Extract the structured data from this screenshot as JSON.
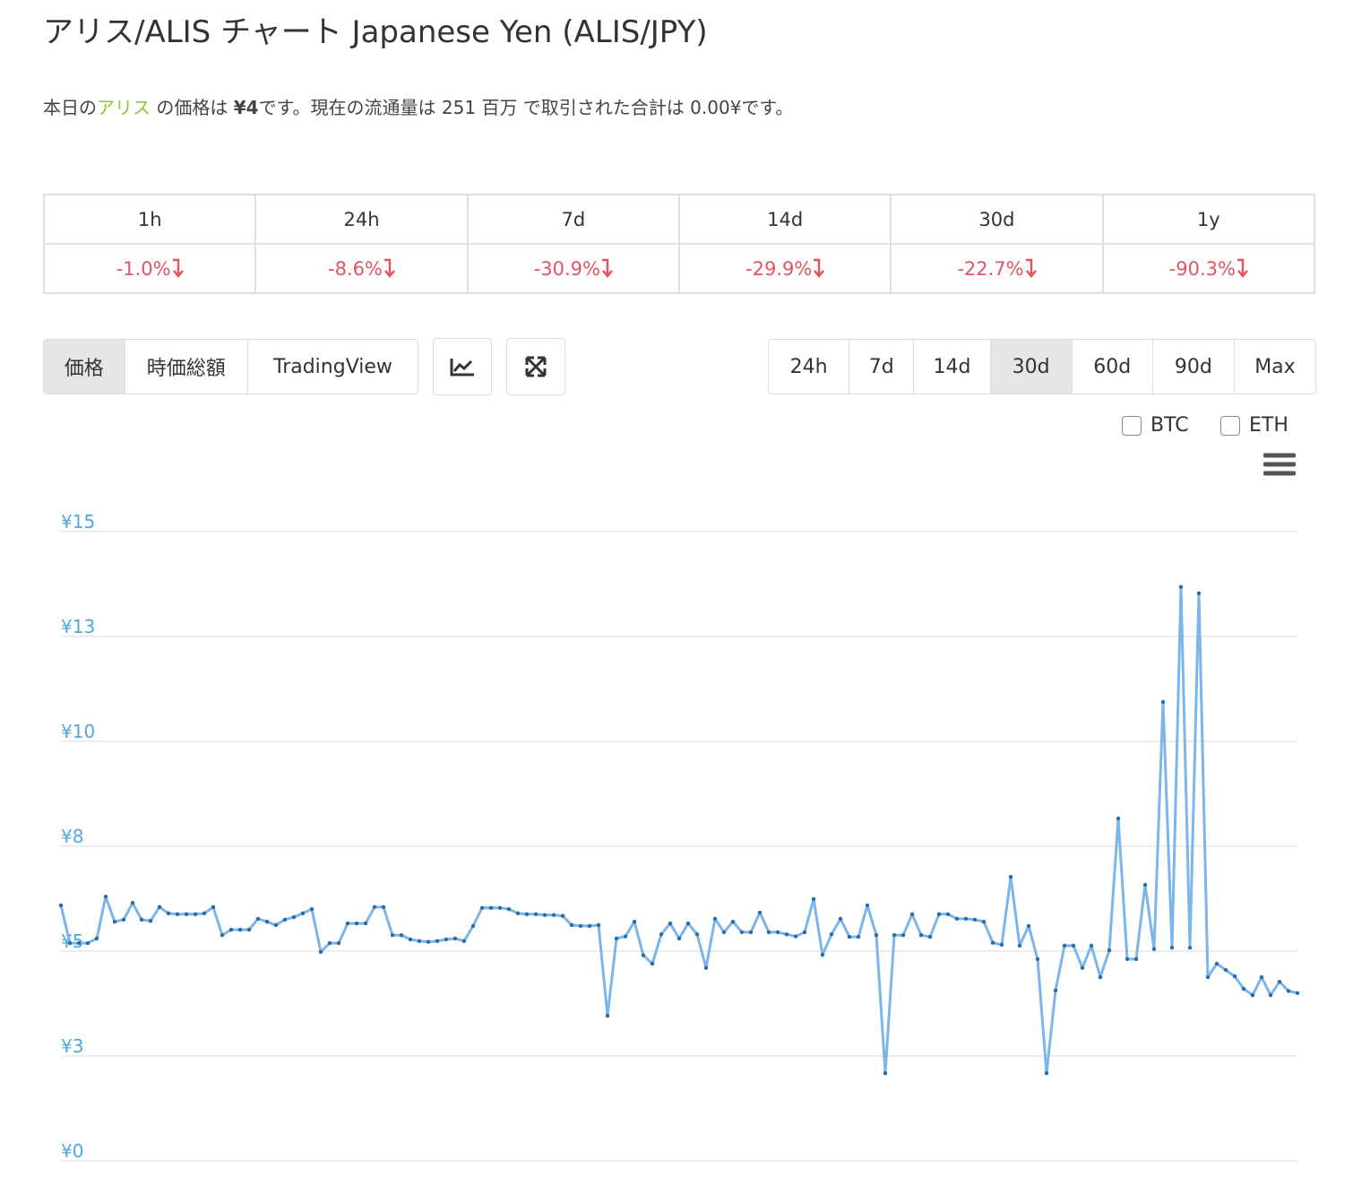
{
  "header": {
    "title": "アリス/ALIS チャート Japanese Yen (ALIS/JPY)"
  },
  "summary": {
    "parts": [
      "本日の",
      "アリス",
      " の価格は ",
      "¥4",
      "です。現在の流通量は 251 百万 で取引された合計は 0.00¥です。"
    ]
  },
  "changes": {
    "headers": [
      "1h",
      "24h",
      "7d",
      "14d",
      "30d",
      "1y"
    ],
    "values": [
      "-1.0%",
      "-8.6%",
      "-30.9%",
      "-29.9%",
      "-22.7%",
      "-90.3%"
    ]
  },
  "tabs": {
    "items": [
      "価格",
      "時価総額",
      "TradingView"
    ],
    "active": 0
  },
  "ranges": {
    "items": [
      "24h",
      "7d",
      "14d",
      "30d",
      "60d",
      "90d",
      "Max"
    ],
    "active": 3
  },
  "compare": {
    "items": [
      "BTC",
      "ETH"
    ]
  },
  "chart_data": {
    "type": "line",
    "color": "#7cb5ec",
    "marker_color": "#2b6ca3",
    "grid": true,
    "ylim": [
      0,
      15
    ],
    "yticks": [
      {
        "value": 0,
        "label": "¥0"
      },
      {
        "value": 2.5,
        "label": "¥3"
      },
      {
        "value": 5,
        "label": "¥5"
      },
      {
        "value": 7.5,
        "label": "¥8"
      },
      {
        "value": 10,
        "label": "¥10"
      },
      {
        "value": 12.5,
        "label": "¥13"
      },
      {
        "value": 15,
        "label": "¥15"
      }
    ],
    "values": [
      6.09,
      5.19,
      5.19,
      5.19,
      5.3,
      6.3,
      5.7,
      5.75,
      6.15,
      5.75,
      5.72,
      6.05,
      5.9,
      5.88,
      5.88,
      5.88,
      5.9,
      6.05,
      5.38,
      5.51,
      5.51,
      5.51,
      5.77,
      5.7,
      5.62,
      5.75,
      5.81,
      5.9,
      6.0,
      4.98,
      5.19,
      5.19,
      5.66,
      5.66,
      5.66,
      6.05,
      6.05,
      5.38,
      5.38,
      5.28,
      5.24,
      5.22,
      5.24,
      5.28,
      5.3,
      5.24,
      5.6,
      6.03,
      6.03,
      6.03,
      6.0,
      5.9,
      5.88,
      5.88,
      5.86,
      5.86,
      5.84,
      5.62,
      5.6,
      5.6,
      5.62,
      3.46,
      5.3,
      5.35,
      5.7,
      4.9,
      4.7,
      5.4,
      5.66,
      5.3,
      5.66,
      5.4,
      4.6,
      5.77,
      5.45,
      5.7,
      5.45,
      5.45,
      5.92,
      5.45,
      5.45,
      5.4,
      5.35,
      5.45,
      6.24,
      4.91,
      5.4,
      5.77,
      5.34,
      5.34,
      6.09,
      5.38,
      2.09,
      5.38,
      5.38,
      5.88,
      5.38,
      5.34,
      5.88,
      5.88,
      5.77,
      5.77,
      5.75,
      5.7,
      5.2,
      5.15,
      6.77,
      5.13,
      5.6,
      4.81,
      2.09,
      4.06,
      5.13,
      5.13,
      4.6,
      5.13,
      4.38,
      5.02,
      8.16,
      4.81,
      4.81,
      6.58,
      5.05,
      10.94,
      5.08,
      13.68,
      5.08,
      13.53,
      4.38,
      4.7,
      4.55,
      4.4,
      4.1,
      3.95,
      4.38,
      3.95,
      4.27,
      4.05,
      4.0
    ]
  }
}
